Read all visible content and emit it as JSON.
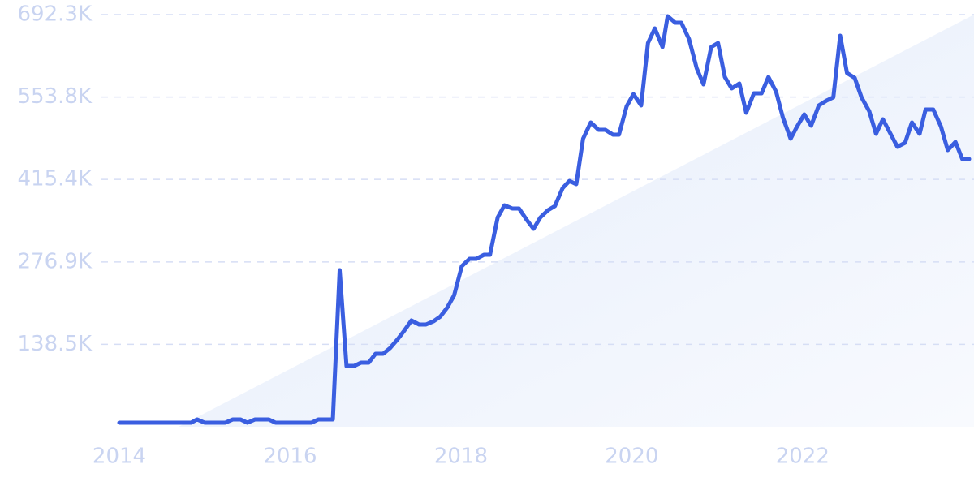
{
  "chart_data": {
    "type": "line",
    "x": [
      2014.0,
      2014.84,
      2014.91,
      2015.0,
      2015.24,
      2015.33,
      2015.42,
      2015.5,
      2015.59,
      2015.75,
      2015.83,
      2016.25,
      2016.33,
      2016.5,
      2016.58,
      2016.66,
      2016.75,
      2016.83,
      2016.92,
      2017.0,
      2017.09,
      2017.17,
      2017.26,
      2017.34,
      2017.42,
      2017.51,
      2017.59,
      2017.68,
      2017.76,
      2017.84,
      2017.92,
      2018.01,
      2018.1,
      2018.18,
      2018.27,
      2018.34,
      2018.43,
      2018.51,
      2018.6,
      2018.68,
      2018.77,
      2018.85,
      2018.93,
      2019.02,
      2019.1,
      2019.19,
      2019.27,
      2019.35,
      2019.43,
      2019.52,
      2019.61,
      2019.69,
      2019.78,
      2019.85,
      2019.94,
      2020.02,
      2020.11,
      2020.19,
      2020.27,
      2020.36,
      2020.42,
      2020.51,
      2020.58,
      2020.67,
      2020.76,
      2020.84,
      2020.93,
      2021.01,
      2021.09,
      2021.17,
      2021.26,
      2021.34,
      2021.43,
      2021.52,
      2021.6,
      2021.69,
      2021.77,
      2021.86,
      2021.93,
      2022.02,
      2022.1,
      2022.19,
      2022.28,
      2022.36,
      2022.44,
      2022.52,
      2022.61,
      2022.69,
      2022.78,
      2022.86,
      2022.94,
      2023.03,
      2023.11,
      2023.2,
      2023.28,
      2023.37,
      2023.44,
      2023.53,
      2023.62,
      2023.7,
      2023.79,
      2023.87,
      2023.95
    ],
    "series": [
      {
        "color": "#3a5ee0",
        "values": [
          6800,
          6800,
          12300,
          6800,
          6800,
          12300,
          12300,
          6800,
          12300,
          12300,
          6800,
          6800,
          12300,
          12300,
          263000,
          102200,
          102200,
          107700,
          107700,
          122700,
          122700,
          132200,
          147200,
          162200,
          178500,
          171700,
          171700,
          177200,
          185300,
          200300,
          220800,
          269800,
          282100,
          282100,
          288900,
          288900,
          351600,
          372000,
          366600,
          366600,
          347500,
          332500,
          351600,
          363900,
          370700,
          400700,
          412900,
          407500,
          483800,
          511100,
          498800,
          498800,
          490600,
          490600,
          538300,
          558700,
          539700,
          644600,
          669100,
          637800,
          689600,
          678700,
          678700,
          651400,
          602300,
          575100,
          637800,
          644600,
          587400,
          568300,
          576500,
          527400,
          560100,
          560100,
          587400,
          562800,
          519200,
          483800,
          502900,
          524700,
          505600,
          539700,
          547800,
          553300,
          656900,
          594200,
          586000,
          553300,
          530100,
          492000,
          516500,
          492000,
          470200,
          477000,
          511100,
          492000,
          532900,
          532900,
          504200,
          464700,
          478300,
          449700,
          449700
        ]
      }
    ],
    "xlim": [
      2014,
      2023.95
    ],
    "xticks": [
      2014,
      2016,
      2018,
      2020,
      2022
    ],
    "ylim": [
      0,
      692300
    ],
    "yticks": [
      {
        "value": 138500,
        "label": "138.5K"
      },
      {
        "value": 276900,
        "label": "276.9K"
      },
      {
        "value": 415400,
        "label": "415.4K"
      },
      {
        "value": 553800,
        "label": "553.8K"
      },
      {
        "value": 692300,
        "label": "692.3K"
      }
    ],
    "grid": true
  }
}
